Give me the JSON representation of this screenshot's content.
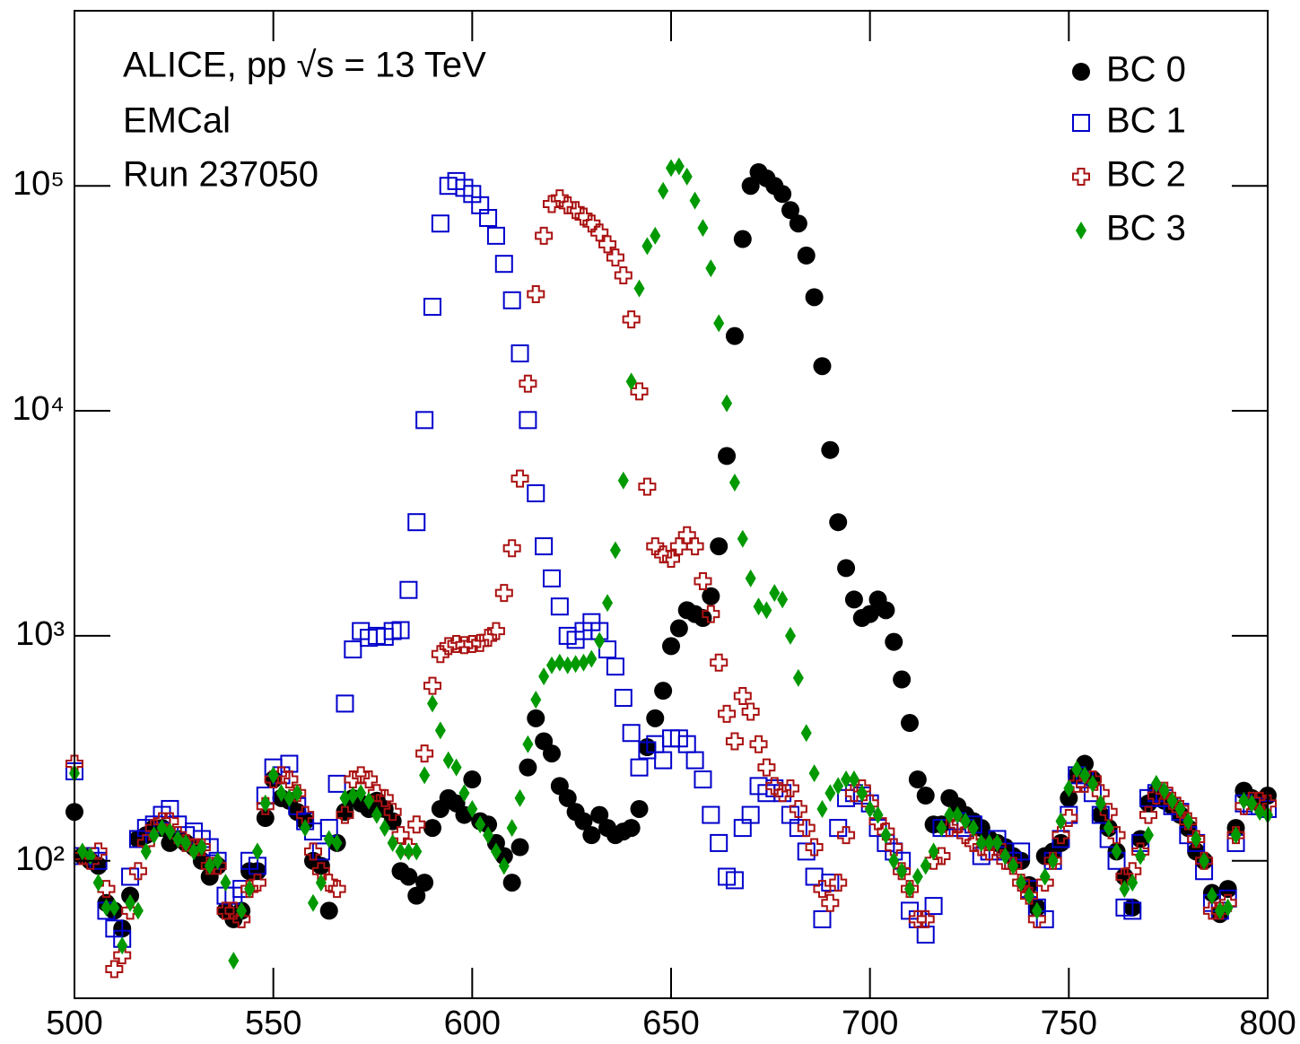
{
  "chart_data": {
    "type": "scatter",
    "title": "ALICE, pp √s = 13 TeV",
    "annotations": [
      "EMCal",
      "Run 237050"
    ],
    "log_y": true,
    "legend": "upper right",
    "xlim": [
      500,
      800
    ],
    "xticks": [
      500,
      550,
      600,
      650,
      700,
      750,
      800
    ],
    "ylim": [
      24.5,
      600000
    ],
    "yticks": [
      {
        "value": 100,
        "label": "10²"
      },
      {
        "value": 1000,
        "label": "10³"
      },
      {
        "value": 10000,
        "label": "10⁴"
      },
      {
        "value": 100000,
        "label": "10⁵"
      }
    ],
    "x": [
      500,
      502,
      504,
      506,
      508,
      510,
      512,
      514,
      516,
      518,
      520,
      522,
      524,
      526,
      528,
      530,
      532,
      534,
      536,
      538,
      540,
      542,
      544,
      546,
      548,
      550,
      552,
      554,
      556,
      558,
      560,
      562,
      564,
      566,
      568,
      570,
      572,
      574,
      576,
      578,
      580,
      582,
      584,
      586,
      588,
      590,
      592,
      594,
      596,
      598,
      600,
      602,
      604,
      606,
      608,
      610,
      612,
      614,
      616,
      618,
      620,
      622,
      624,
      626,
      628,
      630,
      632,
      634,
      636,
      638,
      640,
      642,
      644,
      646,
      648,
      650,
      652,
      654,
      656,
      658,
      660,
      662,
      664,
      666,
      668,
      670,
      672,
      674,
      676,
      678,
      680,
      682,
      684,
      686,
      688,
      690,
      692,
      694,
      696,
      698,
      700,
      702,
      704,
      706,
      708,
      710,
      712,
      714,
      716,
      718,
      720,
      722,
      724,
      726,
      728,
      730,
      732,
      734,
      736,
      738,
      740,
      742,
      744,
      746,
      748,
      750,
      752,
      754,
      756,
      758,
      760,
      762,
      764,
      766,
      768,
      770,
      772,
      774,
      776,
      778,
      780,
      782,
      784,
      786,
      788,
      790,
      792,
      794,
      796,
      798,
      800
    ],
    "series": [
      {
        "name": "BC 0",
        "color": "#000000",
        "marker": "circle",
        "values": [
          165,
          105,
          100,
          95,
          65,
          60,
          50,
          70,
          125,
          130,
          140,
          140,
          120,
          125,
          120,
          115,
          100,
          85,
          95,
          60,
          55,
          60,
          90,
          90,
          155,
          230,
          190,
          185,
          165,
          150,
          100,
          95,
          60,
          120,
          165,
          190,
          180,
          170,
          185,
          170,
          150,
          90,
          85,
          70,
          80,
          140,
          170,
          190,
          180,
          160,
          230,
          150,
          145,
          120,
          105,
          80,
          115,
          260,
          430,
          340,
          300,
          215,
          190,
          165,
          150,
          130,
          160,
          140,
          130,
          135,
          140,
          170,
          320,
          430,
          570,
          900,
          1080,
          1300,
          1250,
          1200,
          1500,
          2500,
          6300,
          21500,
          58000,
          100000,
          115000,
          108000,
          100000,
          92000,
          78000,
          68000,
          49000,
          32000,
          15800,
          6700,
          3200,
          2000,
          1450,
          1200,
          1250,
          1450,
          1300,
          940,
          640,
          410,
          230,
          195,
          145,
          145,
          190,
          175,
          160,
          150,
          140,
          125,
          120,
          115,
          105,
          100,
          78,
          62,
          105,
          110,
          120,
          190,
          240,
          270,
          230,
          160,
          140,
          110,
          85,
          62,
          125,
          180,
          200,
          185,
          175,
          160,
          140,
          110,
          100,
          72,
          58,
          75,
          140,
          205,
          190,
          180,
          195
        ]
      },
      {
        "name": "BC 1",
        "color": "#0000cc",
        "marker": "square",
        "values": [
          250,
          105,
          105,
          100,
          60,
          50,
          45,
          85,
          125,
          140,
          145,
          160,
          170,
          145,
          130,
          135,
          125,
          115,
          100,
          70,
          70,
          75,
          100,
          95,
          195,
          260,
          240,
          270,
          175,
          150,
          135,
          110,
          140,
          220,
          500,
          870,
          1050,
          980,
          1000,
          990,
          1050,
          1060,
          1600,
          3200,
          9100,
          29000,
          68000,
          100000,
          105000,
          98000,
          92000,
          82000,
          72000,
          60000,
          45000,
          31000,
          18000,
          9100,
          4300,
          2500,
          1800,
          1350,
          1000,
          960,
          1050,
          1150,
          1050,
          870,
          730,
          530,
          370,
          260,
          310,
          330,
          280,
          350,
          350,
          330,
          280,
          230,
          160,
          120,
          85,
          82,
          140,
          160,
          215,
          200,
          210,
          200,
          160,
          140,
          110,
          85,
          55,
          80,
          140,
          190,
          200,
          195,
          180,
          140,
          120,
          110,
          100,
          60,
          55,
          47,
          63,
          140,
          140,
          150,
          140,
          145,
          105,
          110,
          125,
          110,
          100,
          110,
          75,
          62,
          55,
          100,
          125,
          160,
          240,
          230,
          200,
          160,
          125,
          100,
          62,
          60,
          120,
          190,
          200,
          190,
          175,
          165,
          130,
          120,
          90,
          65,
          60,
          68,
          120,
          180,
          175,
          175,
          170
        ]
      },
      {
        "name": "BC 2",
        "color": "#aa1111",
        "marker": "cross",
        "values": [
          270,
          105,
          100,
          110,
          75,
          33,
          38,
          60,
          90,
          120,
          140,
          150,
          150,
          130,
          120,
          115,
          115,
          95,
          95,
          60,
          60,
          55,
          75,
          80,
          175,
          230,
          240,
          230,
          200,
          160,
          110,
          90,
          80,
          75,
          160,
          230,
          240,
          230,
          200,
          190,
          165,
          130,
          115,
          145,
          300,
          600,
          830,
          900,
          920,
          910,
          920,
          930,
          980,
          1050,
          1550,
          2450,
          5000,
          13200,
          33000,
          60000,
          83000,
          88000,
          82000,
          78000,
          73000,
          68000,
          62000,
          55000,
          48000,
          40000,
          25500,
          12200,
          4600,
          2500,
          2300,
          2200,
          2500,
          2800,
          2500,
          1750,
          1250,
          760,
          450,
          340,
          540,
          460,
          330,
          260,
          215,
          200,
          210,
          170,
          140,
          115,
          75,
          65,
          80,
          130,
          200,
          210,
          180,
          150,
          135,
          115,
          90,
          75,
          55,
          55,
          100,
          105,
          140,
          145,
          130,
          120,
          115,
          110,
          115,
          100,
          95,
          80,
          70,
          55,
          80,
          100,
          130,
          155,
          220,
          220,
          230,
          200,
          165,
          130,
          85,
          90,
          110,
          160,
          195,
          205,
          185,
          170,
          150,
          125,
          100,
          60,
          60,
          65,
          130,
          175,
          185,
          185,
          180
        ]
      },
      {
        "name": "BC 3",
        "color": "#009900",
        "marker": "diamond",
        "values": [
          245,
          110,
          105,
          80,
          62,
          62,
          42,
          65,
          60,
          110,
          130,
          140,
          135,
          125,
          120,
          110,
          115,
          95,
          100,
          80,
          36,
          60,
          75,
          110,
          180,
          240,
          200,
          190,
          200,
          140,
          65,
          80,
          125,
          120,
          190,
          195,
          200,
          185,
          160,
          140,
          120,
          110,
          110,
          110,
          240,
          500,
          380,
          280,
          260,
          200,
          170,
          145,
          130,
          110,
          95,
          140,
          190,
          330,
          520,
          660,
          740,
          760,
          740,
          750,
          760,
          790,
          950,
          1400,
          2400,
          4900,
          13500,
          35000,
          54000,
          60000,
          95000,
          120000,
          122000,
          110000,
          86000,
          65000,
          43000,
          24500,
          10800,
          4800,
          2700,
          1800,
          1350,
          1300,
          1550,
          1450,
          1000,
          650,
          370,
          245,
          170,
          200,
          215,
          230,
          230,
          200,
          170,
          160,
          130,
          100,
          90,
          75,
          85,
          95,
          110,
          140,
          160,
          160,
          150,
          140,
          120,
          120,
          120,
          105,
          95,
          80,
          70,
          60,
          85,
          100,
          150,
          210,
          255,
          240,
          220,
          180,
          140,
          110,
          75,
          80,
          105,
          130,
          220,
          205,
          185,
          170,
          150,
          125,
          100,
          70,
          60,
          62,
          130,
          185,
          180,
          165,
          160
        ]
      }
    ]
  }
}
